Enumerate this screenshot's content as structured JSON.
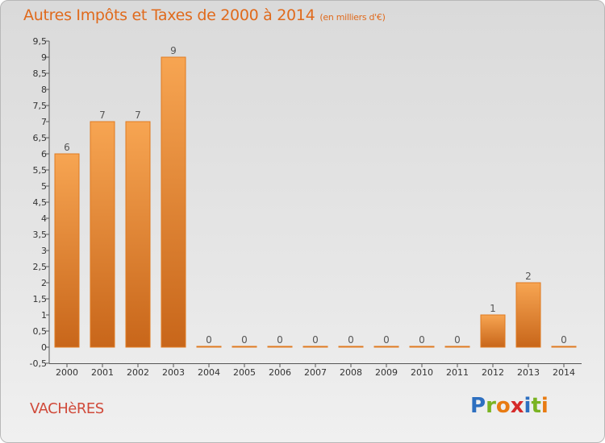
{
  "header": {
    "title": "Autres Impôts et Taxes de 2000 à 2014",
    "subtitle": "(en milliers d'€)"
  },
  "footer": {
    "place": "VACHèRES",
    "logo_letters": [
      {
        "ch": "P",
        "color": "#2d6fc0"
      },
      {
        "ch": "r",
        "color": "#7ab322"
      },
      {
        "ch": "o",
        "color": "#e87b12"
      },
      {
        "ch": "x",
        "color": "#d52a2a"
      },
      {
        "ch": "i",
        "color": "#2d6fc0"
      },
      {
        "ch": "t",
        "color": "#7ab322"
      },
      {
        "ch": "i",
        "color": "#e87b12"
      }
    ]
  },
  "chart_data": {
    "type": "bar",
    "title": "Autres Impôts et Taxes de 2000 à 2014",
    "subtitle": "(en milliers d'€)",
    "categories": [
      "2000",
      "2001",
      "2002",
      "2003",
      "2004",
      "2005",
      "2006",
      "2007",
      "2008",
      "2009",
      "2010",
      "2011",
      "2012",
      "2013",
      "2014"
    ],
    "values": [
      6,
      7,
      7,
      9,
      0,
      0,
      0,
      0,
      0,
      0,
      0,
      0,
      1,
      2,
      0
    ],
    "ylim": [
      -0.5,
      9.5
    ],
    "yticks": [
      "-0,5",
      "0",
      "0,5",
      "1",
      "1,5",
      "2",
      "2,5",
      "3",
      "3,5",
      "4",
      "4,5",
      "5",
      "5,5",
      "6",
      "6,5",
      "7",
      "7,5",
      "8",
      "8,5",
      "9",
      "9,5"
    ],
    "grid": false,
    "bar_color": "#f0943a",
    "bar_edge_color": "#e07a20",
    "data_labels": true
  }
}
